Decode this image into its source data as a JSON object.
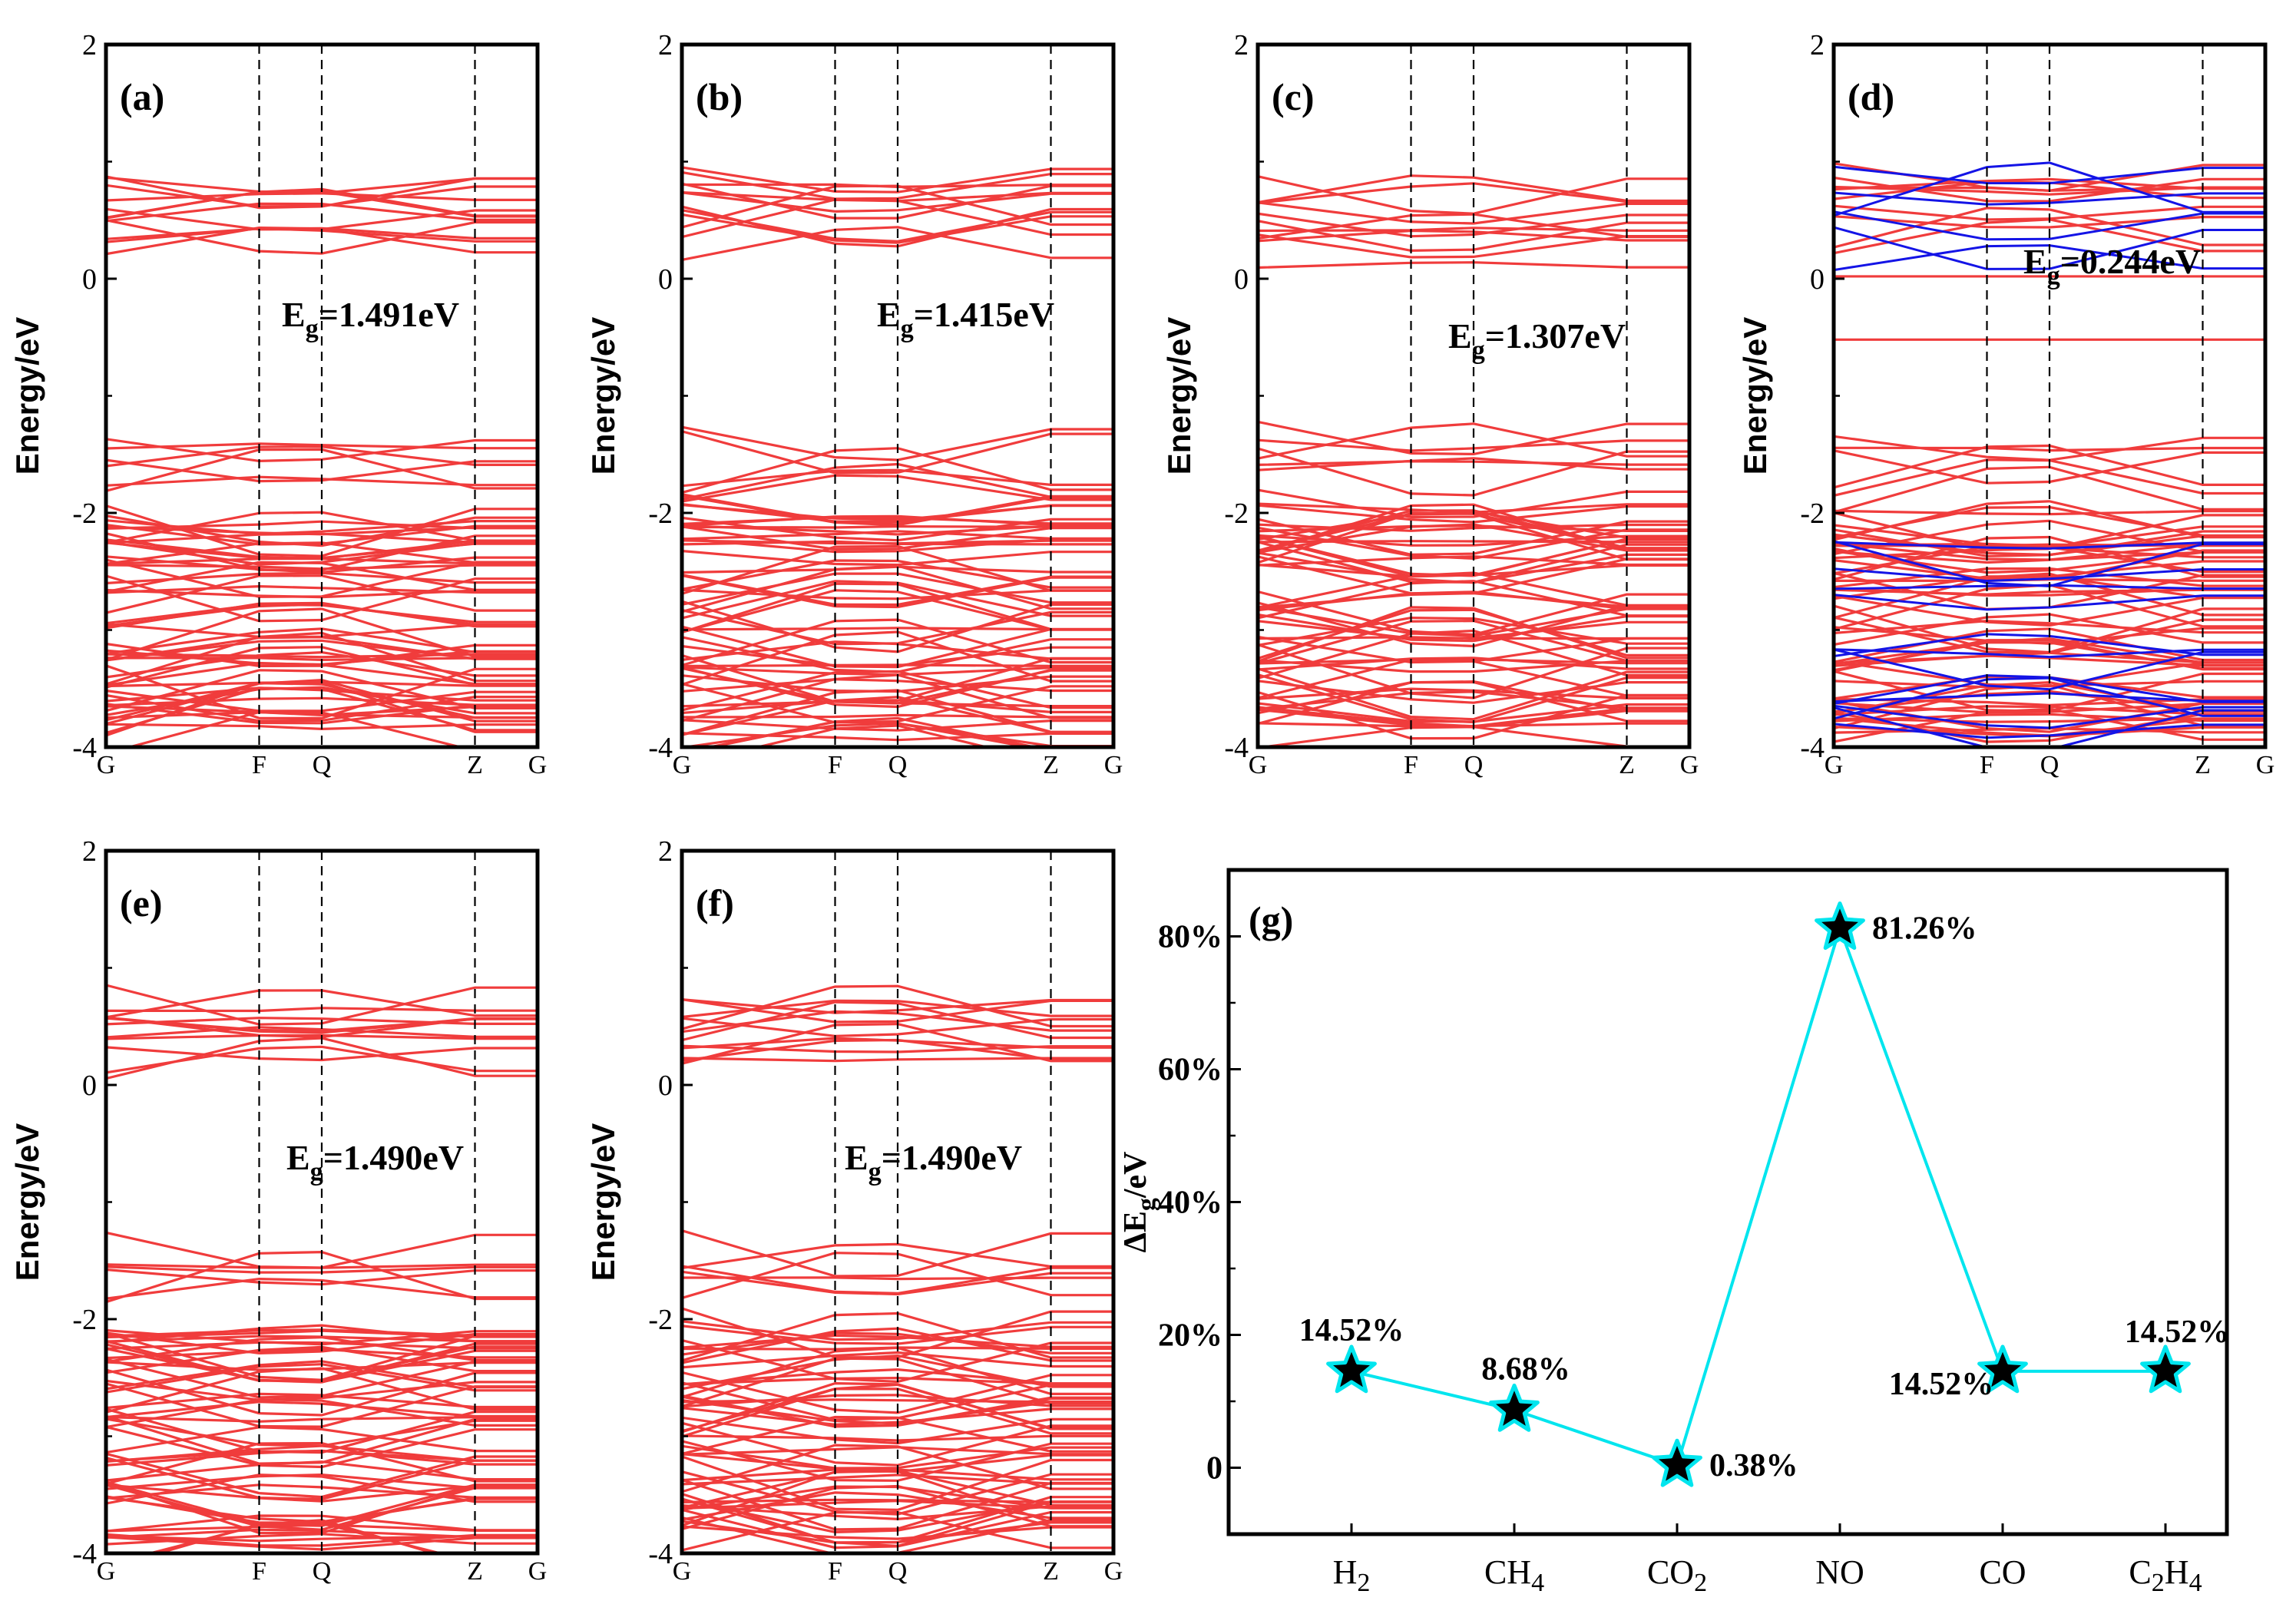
{
  "chart_data": [
    {
      "type": "line",
      "panel": "(a)",
      "title": "",
      "ylabel": "Energy/eV",
      "ylim": [
        -4,
        2
      ],
      "yticks": [
        "2",
        "0",
        "-2",
        "-4"
      ],
      "kpoints": [
        "G",
        "F",
        "Q",
        "Z",
        "G"
      ],
      "gap_label": "E",
      "gap_sub": "g",
      "gap_value": "=1.491eV",
      "gap_eV": 1.491,
      "series": [
        {
          "name": "conduction bands",
          "range_eV": [
            0.15,
            0.85
          ]
        },
        {
          "name": "valence bands",
          "range_eV": [
            -4.0,
            -1.33
          ]
        }
      ]
    },
    {
      "type": "line",
      "panel": "(b)",
      "title": "",
      "ylabel": "Energy/eV",
      "ylim": [
        -4,
        2
      ],
      "yticks": [
        "2",
        "0",
        "-2",
        "-4"
      ],
      "kpoints": [
        "G",
        "F",
        "Q",
        "Z",
        "G"
      ],
      "gap_label": "E",
      "gap_sub": "g",
      "gap_value": "=1.415eV",
      "gap_eV": 1.415,
      "series": [
        {
          "name": "conduction bands",
          "range_eV": [
            0.12,
            0.88
          ]
        },
        {
          "name": "valence bands",
          "range_eV": [
            -4.0,
            -1.29
          ]
        }
      ]
    },
    {
      "type": "line",
      "panel": "(c)",
      "title": "",
      "ylabel": "Energy/eV",
      "ylim": [
        -4,
        2
      ],
      "yticks": [
        "2",
        "0",
        "-2",
        "-4"
      ],
      "kpoints": [
        "G",
        "F",
        "Q",
        "Z",
        "G"
      ],
      "gap_label": "E",
      "gap_sub": "g",
      "gap_value": "=1.307eV",
      "gap_eV": 1.307,
      "series": [
        {
          "name": "conduction bands",
          "range_eV": [
            0.05,
            0.95
          ]
        },
        {
          "name": "valence bands",
          "range_eV": [
            -4.0,
            -1.25
          ]
        }
      ]
    },
    {
      "type": "line",
      "panel": "(d)",
      "title": "",
      "ylabel": "Energy/eV",
      "ylim": [
        -4,
        2
      ],
      "yticks": [
        "2",
        "0",
        "-2",
        "-4"
      ],
      "kpoints": [
        "G",
        "F",
        "Q",
        "Z",
        "G"
      ],
      "gap_label": "E",
      "gap_sub": "g",
      "gap_value": "=0.244eV",
      "gap_eV": 0.244,
      "series": [
        {
          "name": "spin-up bands (red)",
          "range_eV": [
            -4.0,
            0.95
          ],
          "midgap_eV": [
            -0.52,
            0.02
          ]
        },
        {
          "name": "spin-down bands (blue)",
          "range_eV": [
            -4.0,
            1.0
          ]
        }
      ]
    },
    {
      "type": "line",
      "panel": "(e)",
      "title": "",
      "ylabel": "Energy/eV",
      "ylim": [
        -4,
        2
      ],
      "yticks": [
        "2",
        "0",
        "-2",
        "-4"
      ],
      "kpoints": [
        "G",
        "F",
        "Q",
        "Z",
        "G"
      ],
      "gap_label": "E",
      "gap_sub": "g",
      "gap_value": "=1.490eV",
      "gap_eV": 1.49,
      "series": [
        {
          "name": "conduction bands",
          "range_eV": [
            0.15,
            0.85
          ]
        },
        {
          "name": "valence bands",
          "range_eV": [
            -4.0,
            -1.33
          ]
        }
      ]
    },
    {
      "type": "line",
      "panel": "(f)",
      "title": "",
      "ylabel": "Energy/eV",
      "ylim": [
        -4,
        2
      ],
      "yticks": [
        "2",
        "0",
        "-2",
        "-4"
      ],
      "kpoints": [
        "G",
        "F",
        "Q",
        "Z",
        "G"
      ],
      "gap_label": "E",
      "gap_sub": "g",
      "gap_value": "=1.490eV",
      "gap_eV": 1.49,
      "series": [
        {
          "name": "conduction bands",
          "range_eV": [
            0.15,
            0.85
          ]
        },
        {
          "name": "valence bands",
          "range_eV": [
            -4.0,
            -1.33
          ]
        }
      ]
    },
    {
      "type": "line",
      "panel": "(g)",
      "title": "",
      "ylabel": "ΔEg/eV",
      "ylabel_main": "ΔE",
      "ylabel_sub": "g",
      "ylabel_tail": "/eV",
      "ylim": [
        -10,
        90
      ],
      "yticks": [
        "0",
        "20%",
        "40%",
        "60%",
        "80%"
      ],
      "categories": [
        "H2",
        "CH4",
        "CO2",
        "NO",
        "CO",
        "C2H4"
      ],
      "category_parts": [
        [
          "H",
          "2",
          ""
        ],
        [
          "CH",
          "4",
          ""
        ],
        [
          "CO",
          "2",
          ""
        ],
        [
          "NO",
          "",
          ""
        ],
        [
          "CO",
          "",
          ""
        ],
        [
          "C",
          "2",
          "H"
        ]
      ],
      "category_last_sub": [
        "",
        "",
        "",
        "",
        "",
        "4"
      ],
      "values": [
        14.52,
        8.68,
        0.38,
        81.26,
        14.52,
        14.52
      ],
      "labels": [
        "14.52%",
        "8.68%",
        "0.38%",
        "81.26%",
        "14.52%",
        "14.52%"
      ],
      "marker": "star",
      "line_color": "#00E5EE",
      "marker_fill": "#000000",
      "marker_edge": "#00E5EE"
    }
  ],
  "colors": {
    "band": "#F03C3C",
    "band_blue": "#1414E6",
    "axis": "#000000",
    "trend": "#00E5EE"
  }
}
